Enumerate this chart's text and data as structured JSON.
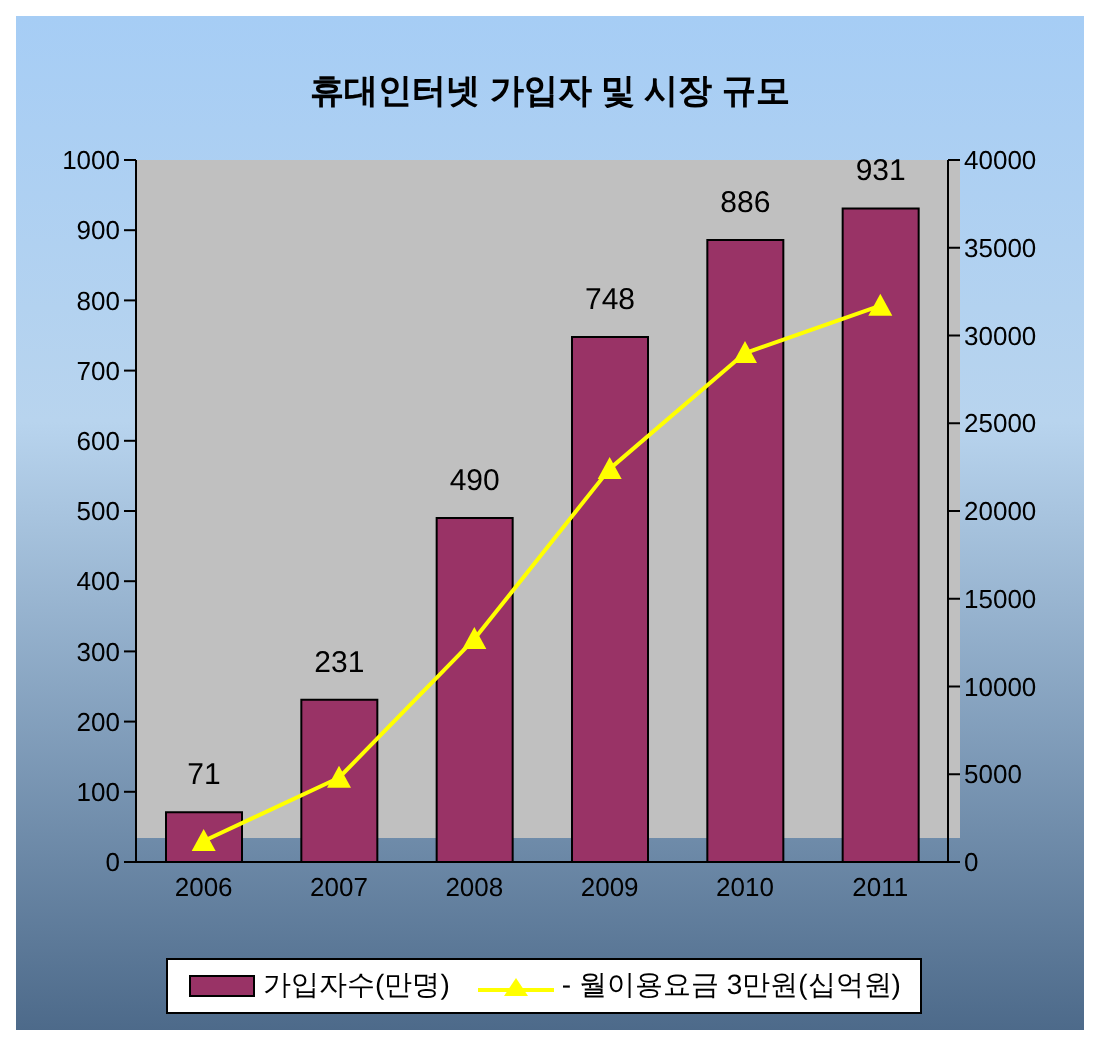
{
  "chart_data": {
    "type": "bar",
    "title": "휴대인터넷 가입자 및 시장 규모",
    "categories": [
      "2006",
      "2007",
      "2008",
      "2009",
      "2010",
      "2011"
    ],
    "series": [
      {
        "name": "가입자수(만명)",
        "color": "#993366",
        "values": [
          71,
          231,
          490,
          748,
          886,
          931
        ],
        "value_labels": [
          "71",
          "231",
          "490",
          "748",
          "886",
          "931"
        ]
      },
      {
        "name": "- 월이용요금 3만원(십억원)",
        "type": "line",
        "axis": "y2",
        "color": "#ffff00",
        "marker": "triangle",
        "values": [
          1200,
          4800,
          12700,
          22400,
          29000,
          31700
        ]
      }
    ],
    "ylim": [
      0,
      1000
    ],
    "yticks": [
      0,
      100,
      200,
      300,
      400,
      500,
      600,
      700,
      800,
      900,
      1000
    ],
    "y2lim": [
      0,
      40000
    ],
    "y2ticks": [
      0,
      5000,
      10000,
      15000,
      20000,
      25000,
      30000,
      35000,
      40000
    ],
    "grid": false,
    "legend": "bottom"
  }
}
